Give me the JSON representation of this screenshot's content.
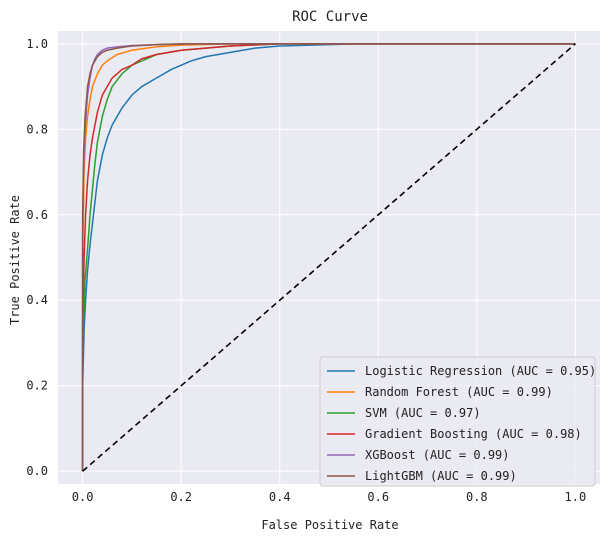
{
  "chart_data": {
    "type": "line",
    "title": "ROC Curve",
    "xlabel": "False Positive Rate",
    "ylabel": "True Positive Rate",
    "xlim": [
      -0.05,
      1.05
    ],
    "ylim": [
      -0.03,
      1.03
    ],
    "xticks": [
      0.0,
      0.2,
      0.4,
      0.6,
      0.8,
      1.0
    ],
    "xtick_labels": [
      "0.0",
      "0.2",
      "0.4",
      "0.6",
      "0.8",
      "1.0"
    ],
    "yticks": [
      0.0,
      0.2,
      0.4,
      0.6,
      0.8,
      1.0
    ],
    "ytick_labels": [
      "0.0",
      "0.2",
      "0.4",
      "0.6",
      "0.8",
      "1.0"
    ],
    "grid": true,
    "legend_position": "lower-right",
    "background_color": "#eaeaf2",
    "series": [
      {
        "name": "Logistic Regression (AUC = 0.95)",
        "color": "#1f77b4",
        "x": [
          0,
          0.0,
          0.003,
          0.006,
          0.01,
          0.015,
          0.02,
          0.025,
          0.03,
          0.04,
          0.05,
          0.06,
          0.07,
          0.08,
          0.1,
          0.12,
          0.15,
          0.18,
          0.22,
          0.25,
          0.3,
          0.35,
          0.4,
          0.5,
          0.55,
          1.0
        ],
        "y": [
          0,
          0.2,
          0.33,
          0.4,
          0.47,
          0.53,
          0.58,
          0.63,
          0.68,
          0.74,
          0.78,
          0.81,
          0.83,
          0.85,
          0.88,
          0.9,
          0.92,
          0.94,
          0.96,
          0.97,
          0.98,
          0.99,
          0.995,
          0.998,
          1.0,
          1.0
        ]
      },
      {
        "name": "Random Forest (AUC = 0.99)",
        "color": "#ff7f0e",
        "x": [
          0,
          0.0,
          0.003,
          0.006,
          0.01,
          0.015,
          0.02,
          0.03,
          0.04,
          0.05,
          0.07,
          0.1,
          0.13,
          0.15,
          0.2,
          0.3,
          1.0
        ],
        "y": [
          0,
          0.5,
          0.7,
          0.78,
          0.83,
          0.87,
          0.9,
          0.93,
          0.95,
          0.96,
          0.975,
          0.985,
          0.99,
          0.993,
          0.997,
          1.0,
          1.0
        ]
      },
      {
        "name": "SVM (AUC = 0.97)",
        "color": "#2ca02c",
        "x": [
          0,
          0.0,
          0.005,
          0.01,
          0.015,
          0.02,
          0.025,
          0.03,
          0.04,
          0.05,
          0.06,
          0.08,
          0.1,
          0.12,
          0.15,
          0.2,
          0.25,
          0.3,
          0.4,
          1.0
        ],
        "y": [
          0,
          0.3,
          0.45,
          0.52,
          0.6,
          0.66,
          0.72,
          0.77,
          0.83,
          0.87,
          0.9,
          0.93,
          0.95,
          0.96,
          0.975,
          0.985,
          0.99,
          0.995,
          1.0,
          1.0
        ]
      },
      {
        "name": "Gradient Boosting (AUC = 0.98)",
        "color": "#d62728",
        "x": [
          0,
          0.0,
          0.003,
          0.006,
          0.01,
          0.015,
          0.02,
          0.025,
          0.03,
          0.04,
          0.05,
          0.06,
          0.08,
          0.1,
          0.12,
          0.15,
          0.2,
          0.25,
          0.3,
          0.4,
          1.0
        ],
        "y": [
          0,
          0.35,
          0.5,
          0.6,
          0.68,
          0.74,
          0.78,
          0.81,
          0.84,
          0.88,
          0.9,
          0.92,
          0.94,
          0.95,
          0.965,
          0.975,
          0.985,
          0.99,
          0.995,
          1.0,
          1.0
        ]
      },
      {
        "name": "XGBoost (AUC = 0.99)",
        "color": "#9467bd",
        "x": [
          0,
          0.0,
          0.002,
          0.005,
          0.008,
          0.01,
          0.015,
          0.02,
          0.025,
          0.03,
          0.04,
          0.05,
          0.07,
          0.1,
          0.15,
          0.2,
          0.3,
          1.0
        ],
        "y": [
          0,
          0.55,
          0.72,
          0.8,
          0.85,
          0.88,
          0.92,
          0.95,
          0.965,
          0.975,
          0.985,
          0.99,
          0.993,
          0.996,
          0.998,
          1.0,
          1.0,
          1.0
        ]
      },
      {
        "name": "LightGBM (AUC = 0.99)",
        "color": "#8c564b",
        "x": [
          0,
          0.0,
          0.002,
          0.005,
          0.008,
          0.01,
          0.015,
          0.02,
          0.03,
          0.04,
          0.05,
          0.07,
          0.1,
          0.15,
          0.2,
          0.3,
          1.0
        ],
        "y": [
          0,
          0.6,
          0.75,
          0.83,
          0.87,
          0.9,
          0.93,
          0.95,
          0.97,
          0.98,
          0.985,
          0.99,
          0.995,
          0.998,
          1.0,
          1.0,
          1.0
        ]
      }
    ],
    "reference_line": {
      "x": [
        0,
        1
      ],
      "y": [
        0,
        1
      ],
      "color": "#000000",
      "style": "dashed"
    }
  }
}
